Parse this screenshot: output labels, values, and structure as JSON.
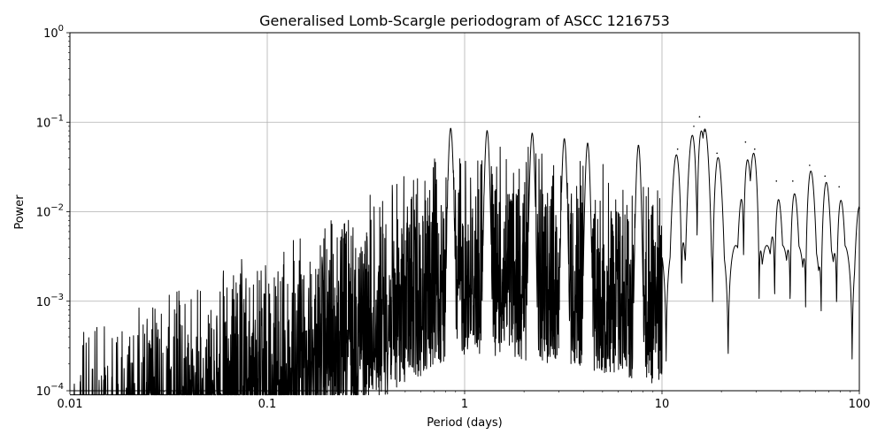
{
  "chart_data": {
    "type": "line",
    "title": "Generalised Lomb-Scargle periodogram of ASCC 1216753",
    "xlabel": "Period (days)",
    "ylabel": "Power",
    "xscale": "log",
    "yscale": "log",
    "xlim": [
      0.01,
      100
    ],
    "ylim": [
      0.0001,
      1
    ],
    "x_ticks": [
      0.01,
      0.1,
      1,
      10,
      100
    ],
    "x_tick_labels": [
      "0.01",
      "0.1",
      "1",
      "10",
      "100"
    ],
    "y_ticks": [
      0.0001,
      0.001,
      0.01,
      0.1,
      1
    ],
    "y_tick_labels": [
      {
        "base": "10",
        "exp": "−4"
      },
      {
        "base": "10",
        "exp": "−3"
      },
      {
        "base": "10",
        "exp": "−2"
      },
      {
        "base": "10",
        "exp": "−1"
      },
      {
        "base": "10",
        "exp": "0"
      }
    ],
    "grid": true,
    "line_color": "#000000",
    "envelope": [
      {
        "period": 0.01,
        "power": 0.0005
      },
      {
        "period": 0.02,
        "power": 0.0009
      },
      {
        "period": 0.03,
        "power": 0.0015
      },
      {
        "period": 0.05,
        "power": 0.002
      },
      {
        "period": 0.07,
        "power": 0.003
      },
      {
        "period": 0.1,
        "power": 0.004
      },
      {
        "period": 0.15,
        "power": 0.006
      },
      {
        "period": 0.2,
        "power": 0.009
      },
      {
        "period": 0.3,
        "power": 0.015
      },
      {
        "period": 0.5,
        "power": 0.03
      },
      {
        "period": 0.8,
        "power": 0.05
      },
      {
        "period": 1,
        "power": 0.06
      },
      {
        "period": 1.5,
        "power": 0.06
      },
      {
        "period": 2,
        "power": 0.055
      },
      {
        "period": 3,
        "power": 0.05
      },
      {
        "period": 5,
        "power": 0.04
      },
      {
        "period": 8,
        "power": 0.03
      },
      {
        "period": 10,
        "power": 0.03
      }
    ],
    "peaks": [
      {
        "period": 0.85,
        "power": 0.085
      },
      {
        "period": 1.3,
        "power": 0.08
      },
      {
        "period": 2.2,
        "power": 0.075
      },
      {
        "period": 3.2,
        "power": 0.065
      },
      {
        "period": 4.2,
        "power": 0.058
      },
      {
        "period": 7.6,
        "power": 0.055
      },
      {
        "period": 12,
        "power": 0.05
      },
      {
        "period": 14.5,
        "power": 0.09
      },
      {
        "period": 15.5,
        "power": 0.115
      },
      {
        "period": 16.5,
        "power": 0.08
      },
      {
        "period": 19,
        "power": 0.045
      },
      {
        "period": 26.5,
        "power": 0.06
      },
      {
        "period": 29.5,
        "power": 0.05
      },
      {
        "period": 38,
        "power": 0.022
      },
      {
        "period": 46,
        "power": 0.022
      },
      {
        "period": 56,
        "power": 0.033
      },
      {
        "period": 67,
        "power": 0.025
      },
      {
        "period": 79,
        "power": 0.019
      },
      {
        "period": 100,
        "power": 0.011
      }
    ]
  }
}
